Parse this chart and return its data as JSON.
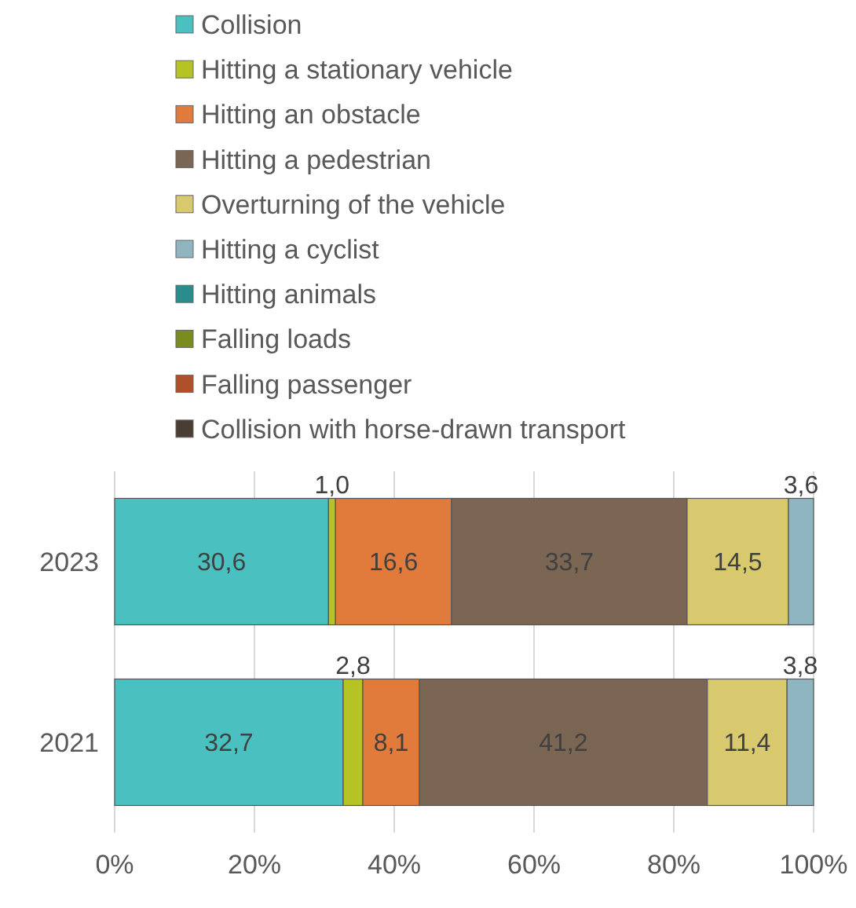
{
  "chart_data": {
    "type": "bar",
    "orientation": "horizontal",
    "stacked": true,
    "categories": [
      "2023",
      "2021"
    ],
    "series": [
      {
        "name": "Collision",
        "color": "#4bc0c0",
        "values": [
          30.6,
          32.7
        ],
        "value_labels": [
          "30,6",
          "32,7"
        ]
      },
      {
        "name": "Hitting a stationary vehicle",
        "color": "#b5c424",
        "values": [
          1.0,
          2.8
        ],
        "value_labels": [
          "1,0",
          "2,8"
        ]
      },
      {
        "name": "Hitting an obstacle",
        "color": "#e07b3c",
        "values": [
          16.6,
          8.1
        ],
        "value_labels": [
          "16,6",
          "8,1"
        ]
      },
      {
        "name": "Hitting a pedestrian",
        "color": "#7a6652",
        "values": [
          33.7,
          41.2
        ],
        "value_labels": [
          "33,7",
          "41,2"
        ]
      },
      {
        "name": "Overturning of the vehicle",
        "color": "#d8c86e",
        "values": [
          14.5,
          11.4
        ],
        "value_labels": [
          "14,5",
          "11,4"
        ]
      },
      {
        "name": "Hitting a cyclist",
        "color": "#8fb5c0",
        "values": [
          3.6,
          3.8
        ],
        "value_labels": [
          "3,6",
          "3,8"
        ]
      },
      {
        "name": "Hitting animals",
        "color": "#2a8c8c",
        "values": [
          null,
          null
        ]
      },
      {
        "name": "Falling loads",
        "color": "#7a8c1e",
        "values": [
          null,
          null
        ]
      },
      {
        "name": "Falling passenger",
        "color": "#b0502a",
        "values": [
          null,
          null
        ]
      },
      {
        "name": "Collision with horse-drawn transport",
        "color": "#4a3e34",
        "values": [
          null,
          null
        ]
      }
    ],
    "xlim": [
      0,
      100
    ],
    "xticks": [
      {
        "value": 0,
        "label": "0%"
      },
      {
        "value": 20,
        "label": "20%"
      },
      {
        "value": 40,
        "label": "40%"
      },
      {
        "value": 60,
        "label": "60%"
      },
      {
        "value": 80,
        "label": "80%"
      },
      {
        "value": 100,
        "label": "100%"
      }
    ],
    "grid": "x",
    "legend": "top"
  }
}
